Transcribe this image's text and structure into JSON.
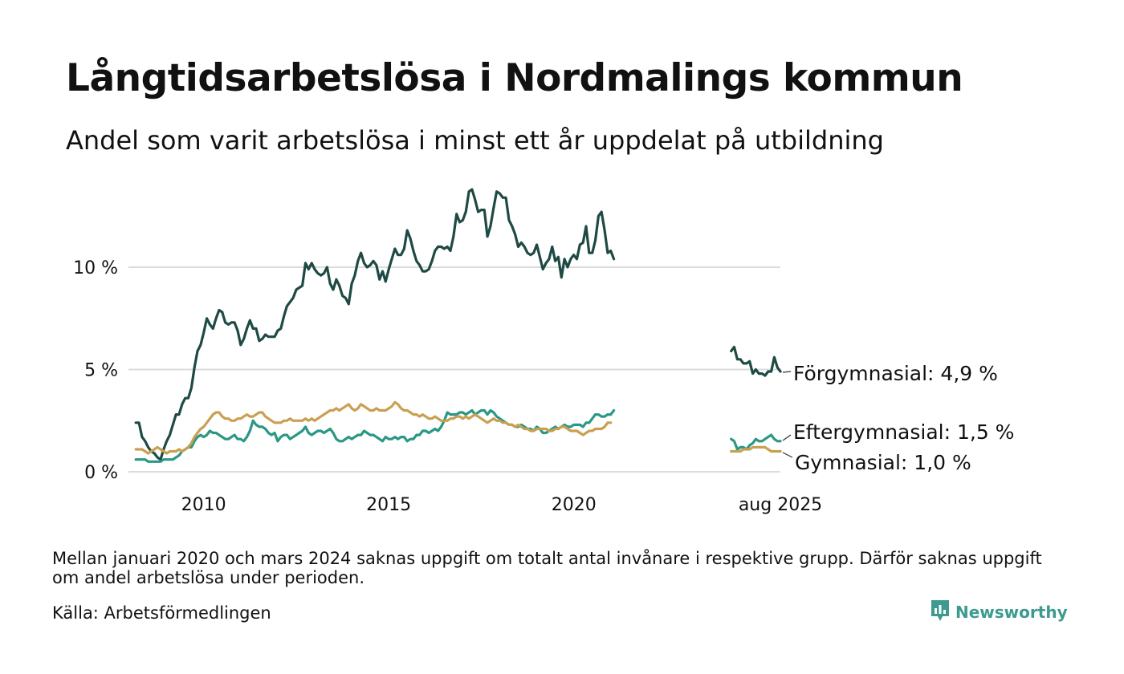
{
  "title": "Långtidsarbetslösa i Nordmalings kommun",
  "subtitle": "Andel som varit arbetslösa i minst ett år uppdelat på utbildning",
  "note": "Mellan januari 2020 och mars 2024 saknas uppgift om totalt antal invånare i respektive grupp. Därför saknas uppgift om andel arbetslösa under perioden.",
  "source": "Källa: Arbetsförmedlingen",
  "brand": "Newsworthy",
  "chart_data": {
    "type": "line",
    "y_ticks": [
      {
        "value": 0,
        "label": "0 %"
      },
      {
        "value": 5,
        "label": "5 %"
      },
      {
        "value": 10,
        "label": "10 %"
      }
    ],
    "x_ticks": [
      {
        "value": 2010,
        "label": "2010"
      },
      {
        "value": 2015,
        "label": "2015"
      },
      {
        "value": 2020,
        "label": "2020"
      },
      {
        "value": 2025.58,
        "label": "aug 2025"
      }
    ],
    "xlim": [
      2008.1,
      2025.58
    ],
    "ylim": [
      0,
      14
    ],
    "grid": true,
    "series": [
      {
        "key": "forgym",
        "end_label": "Förgymnasial: 4,9 %",
        "color": "#1f4a44",
        "segments": [
          {
            "x0": 2008.17,
            "step": 0.0833,
            "values": [
              2.4,
              2.4,
              1.7,
              1.5,
              1.2,
              1.0,
              0.9,
              0.7,
              0.6,
              1.1,
              1.5,
              1.8,
              2.3,
              2.8,
              2.8,
              3.3,
              3.6,
              3.6,
              4.1,
              5.1,
              5.9,
              6.2,
              6.8,
              7.5,
              7.2,
              7.0,
              7.5,
              7.9,
              7.8,
              7.3,
              7.2,
              7.3,
              7.3,
              6.9,
              6.2,
              6.5,
              7.0,
              7.4,
              7.0,
              7.0,
              6.4,
              6.5,
              6.7,
              6.6,
              6.6,
              6.6,
              6.9,
              7.0,
              7.6,
              8.1,
              8.3,
              8.5,
              8.9,
              9.0,
              9.1,
              10.2,
              9.9,
              10.2,
              9.9,
              9.7,
              9.6,
              9.7,
              10.0,
              9.2,
              8.9,
              9.4,
              9.1,
              8.6,
              8.5,
              8.2,
              9.2,
              9.6,
              10.3,
              10.7,
              10.2,
              10.0,
              10.1,
              10.3,
              10.1,
              9.4,
              9.8,
              9.3,
              9.9,
              10.4,
              10.9,
              10.6,
              10.6,
              10.9,
              11.8,
              11.4,
              10.8,
              10.3,
              10.1,
              9.8,
              9.8,
              9.9,
              10.3,
              10.8,
              11.0,
              11.0,
              10.9,
              11.0,
              10.8,
              11.5,
              12.6,
              12.2,
              12.3,
              12.7,
              13.7,
              13.8,
              13.3,
              12.7,
              12.8,
              12.8,
              11.5,
              12.0,
              12.9,
              13.7,
              13.6,
              13.4,
              13.4,
              12.3,
              12.0,
              11.6,
              11.0,
              11.2,
              11.0,
              10.7,
              10.6,
              10.7,
              11.1,
              10.5,
              9.9,
              10.2,
              10.4,
              11.0,
              10.3,
              10.5,
              9.5,
              10.4,
              10.0,
              10.4,
              10.6,
              10.4,
              11.1,
              11.2,
              12.0,
              10.7,
              10.7,
              11.3,
              12.5,
              12.7,
              11.8,
              10.7,
              10.8,
              10.4
            ]
          },
          {
            "x0": 2024.25,
            "step": 0.0833,
            "values": [
              5.9,
              6.1,
              5.5,
              5.5,
              5.3,
              5.3,
              5.4,
              4.8,
              5.0,
              4.8,
              4.8,
              4.7,
              4.9,
              4.9,
              5.6,
              5.1,
              4.9
            ]
          }
        ]
      },
      {
        "key": "eftergym",
        "end_label": "Eftergymnasial: 1,5 %",
        "color": "#2a9884",
        "segments": [
          {
            "x0": 2008.17,
            "step": 0.0833,
            "values": [
              0.6,
              0.6,
              0.6,
              0.6,
              0.5,
              0.5,
              0.5,
              0.5,
              0.5,
              0.6,
              0.6,
              0.6,
              0.6,
              0.7,
              0.8,
              1.0,
              1.1,
              1.2,
              1.2,
              1.5,
              1.7,
              1.8,
              1.7,
              1.8,
              2.0,
              1.9,
              1.9,
              1.8,
              1.7,
              1.6,
              1.6,
              1.7,
              1.8,
              1.6,
              1.6,
              1.5,
              1.7,
              2.0,
              2.5,
              2.3,
              2.2,
              2.2,
              2.1,
              1.9,
              1.8,
              1.9,
              1.5,
              1.7,
              1.8,
              1.8,
              1.6,
              1.7,
              1.8,
              1.9,
              2.0,
              2.2,
              1.9,
              1.8,
              1.9,
              2.0,
              2.0,
              1.9,
              2.0,
              2.1,
              1.9,
              1.6,
              1.5,
              1.5,
              1.6,
              1.7,
              1.6,
              1.7,
              1.8,
              1.8,
              2.0,
              1.9,
              1.8,
              1.8,
              1.7,
              1.6,
              1.5,
              1.7,
              1.6,
              1.6,
              1.7,
              1.6,
              1.7,
              1.7,
              1.5,
              1.6,
              1.6,
              1.8,
              1.8,
              2.0,
              2.0,
              1.9,
              2.0,
              2.1,
              2.0,
              2.2,
              2.5,
              2.9,
              2.8,
              2.8,
              2.8,
              2.9,
              2.9,
              2.8,
              2.9,
              3.0,
              2.8,
              2.9,
              3.0,
              3.0,
              2.8,
              3.0,
              2.9,
              2.7,
              2.6,
              2.5,
              2.4,
              2.3,
              2.3,
              2.2,
              2.2,
              2.3,
              2.2,
              2.1,
              2.1,
              2.0,
              2.2,
              2.1,
              1.9,
              1.9,
              2.0,
              2.1,
              2.2,
              2.1,
              2.2,
              2.3,
              2.2,
              2.2,
              2.3,
              2.3,
              2.3,
              2.2,
              2.4,
              2.4,
              2.6,
              2.8,
              2.8,
              2.7,
              2.7,
              2.8,
              2.8,
              3.0
            ]
          },
          {
            "x0": 2024.25,
            "step": 0.0833,
            "values": [
              1.6,
              1.5,
              1.1,
              1.2,
              1.2,
              1.1,
              1.3,
              1.4,
              1.6,
              1.5,
              1.5,
              1.6,
              1.7,
              1.8,
              1.6,
              1.5,
              1.5
            ]
          }
        ]
      },
      {
        "key": "gym",
        "end_label": "Gymnasial: 1,0 %",
        "color": "#c9a052",
        "segments": [
          {
            "x0": 2008.17,
            "step": 0.0833,
            "values": [
              1.1,
              1.1,
              1.1,
              1.0,
              0.9,
              1.0,
              1.1,
              1.2,
              1.1,
              1.0,
              0.9,
              1.0,
              1.0,
              1.0,
              1.1,
              1.0,
              1.1,
              1.2,
              1.4,
              1.7,
              1.9,
              2.1,
              2.2,
              2.4,
              2.6,
              2.8,
              2.9,
              2.9,
              2.7,
              2.6,
              2.6,
              2.5,
              2.5,
              2.6,
              2.6,
              2.7,
              2.8,
              2.7,
              2.7,
              2.8,
              2.9,
              2.9,
              2.7,
              2.6,
              2.5,
              2.4,
              2.4,
              2.4,
              2.5,
              2.5,
              2.6,
              2.5,
              2.5,
              2.5,
              2.5,
              2.6,
              2.5,
              2.6,
              2.5,
              2.6,
              2.7,
              2.8,
              2.9,
              3.0,
              3.0,
              3.1,
              3.0,
              3.1,
              3.2,
              3.3,
              3.1,
              3.0,
              3.1,
              3.3,
              3.2,
              3.1,
              3.0,
              3.0,
              3.1,
              3.0,
              3.0,
              3.0,
              3.1,
              3.2,
              3.4,
              3.3,
              3.1,
              3.0,
              3.0,
              2.9,
              2.8,
              2.8,
              2.7,
              2.8,
              2.7,
              2.6,
              2.6,
              2.7,
              2.6,
              2.5,
              2.5,
              2.5,
              2.6,
              2.6,
              2.7,
              2.7,
              2.6,
              2.7,
              2.6,
              2.7,
              2.8,
              2.7,
              2.6,
              2.5,
              2.4,
              2.5,
              2.6,
              2.5,
              2.5,
              2.4,
              2.4,
              2.3,
              2.3,
              2.2,
              2.3,
              2.2,
              2.1,
              2.1,
              2.0,
              2.0,
              2.1,
              2.1,
              2.1,
              2.1,
              2.0,
              2.0,
              2.1,
              2.1,
              2.2,
              2.2,
              2.1,
              2.0,
              2.0,
              2.0,
              1.9,
              1.8,
              1.9,
              2.0,
              2.0,
              2.1,
              2.1,
              2.1,
              2.2,
              2.4,
              2.4
            ]
          },
          {
            "x0": 2024.25,
            "step": 0.0833,
            "values": [
              1.0,
              1.0,
              1.0,
              1.0,
              1.1,
              1.1,
              1.1,
              1.2,
              1.2,
              1.2,
              1.2,
              1.2,
              1.1,
              1.0,
              1.0,
              1.0,
              1.0
            ]
          }
        ]
      }
    ]
  }
}
